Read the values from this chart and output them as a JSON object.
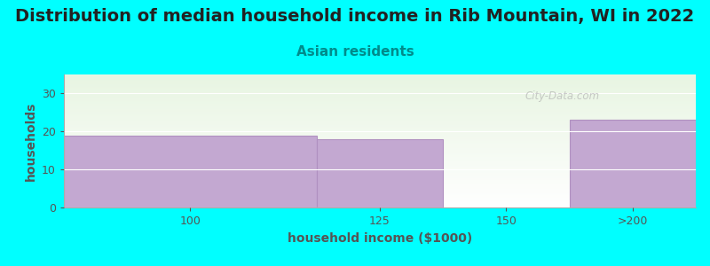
{
  "title": "Distribution of median household income in Rib Mountain, WI in 2022",
  "subtitle": "Asian residents",
  "xlabel": "household income ($1000)",
  "ylabel": "households",
  "background_color": "#00FFFF",
  "plot_bg_color_top": "#e8f5e2",
  "plot_bg_color_bottom": "#ffffff",
  "bar_color": "#C3A8D1",
  "bar_edge_color": "#b090c0",
  "watermark": "City-Data.com",
  "bars": [
    {
      "label": "100",
      "x_start": 0,
      "x_end": 2,
      "height": 19
    },
    {
      "label": "125",
      "x_start": 2,
      "x_end": 3,
      "height": 18
    },
    {
      "label": "150",
      "x_start": 3,
      "x_end": 4,
      "height": 0
    },
    {
      "label": ">200",
      "x_start": 4,
      "x_end": 5,
      "height": 23
    }
  ],
  "xlim": [
    0,
    5
  ],
  "xtick_positions": [
    1.0,
    2.5,
    3.5,
    4.5
  ],
  "xtick_labels": [
    "100",
    "125",
    "150",
    ">200"
  ],
  "yticks": [
    0,
    10,
    20,
    30
  ],
  "ylim": [
    0,
    35
  ],
  "title_fontsize": 14,
  "subtitle_fontsize": 11,
  "axis_label_fontsize": 10,
  "tick_fontsize": 9,
  "title_color": "#222222",
  "subtitle_color": "#008B8B",
  "axis_label_color": "#555555",
  "tick_color": "#555555"
}
